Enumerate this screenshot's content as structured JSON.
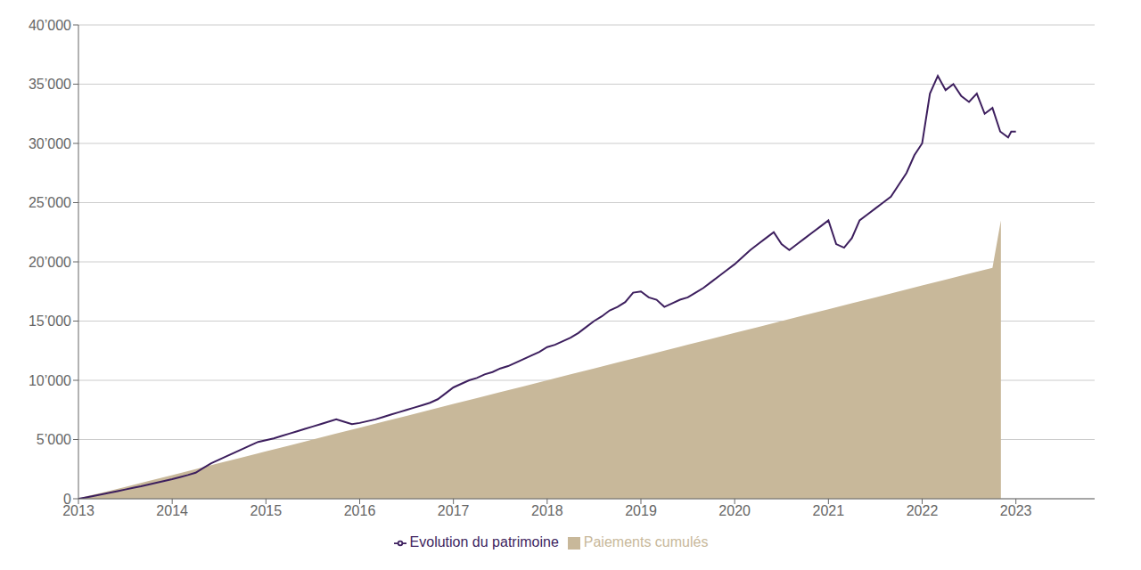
{
  "chart_data": {
    "type": "line",
    "xlim": [
      2013,
      2023.84
    ],
    "xticks": [
      2013,
      2014,
      2015,
      2016,
      2017,
      2018,
      2019,
      2020,
      2021,
      2022,
      2023
    ],
    "ylim": [
      0,
      40000
    ],
    "yticks": [
      0,
      {
        "value": 5000,
        "label": "5’000"
      },
      {
        "value": 10000,
        "label": "10’000"
      },
      {
        "value": 15000,
        "label": "15’000"
      },
      {
        "value": 20000,
        "label": "20’000"
      },
      {
        "value": 25000,
        "label": "25’000"
      },
      {
        "value": 30000,
        "label": "30’000"
      },
      {
        "value": 35000,
        "label": "35’000"
      },
      {
        "value": 40000,
        "label": "40’000"
      }
    ],
    "grid": true,
    "legend": "bottom",
    "series": [
      {
        "name": "Paiements cumulés",
        "type": "area",
        "color": "#c8b89a",
        "x": [
          2013.0,
          2013.083,
          2013.25,
          2013.5,
          2013.75,
          2014.0,
          2014.25,
          2014.5,
          2014.75,
          2015.0,
          2015.25,
          2015.5,
          2015.75,
          2016.0,
          2016.25,
          2016.5,
          2016.75,
          2017.0,
          2017.25,
          2017.5,
          2017.75,
          2018.0,
          2018.25,
          2018.5,
          2018.75,
          2019.0,
          2019.25,
          2019.5,
          2019.75,
          2020.0,
          2020.25,
          2020.5,
          2020.75,
          2021.0,
          2021.25,
          2021.5,
          2021.75,
          2022.0,
          2022.25,
          2022.5,
          2022.75,
          2022.84
        ],
        "values": [
          0,
          200,
          500,
          1000,
          1500,
          2000,
          2500,
          3000,
          3500,
          4000,
          4500,
          5000,
          5500,
          6000,
          6500,
          7000,
          7500,
          8000,
          8500,
          9000,
          9500,
          10000,
          10500,
          11000,
          11500,
          12000,
          12500,
          13000,
          13500,
          14000,
          14500,
          15000,
          15500,
          16000,
          16500,
          17000,
          17500,
          18000,
          18500,
          19000,
          19500,
          23500
        ]
      },
      {
        "name": "Evolution du patrimoine",
        "type": "line",
        "color": "#3d1f5e",
        "x": [
          2013.0,
          2013.083,
          2013.167,
          2013.25,
          2013.333,
          2013.417,
          2013.5,
          2013.583,
          2013.667,
          2013.75,
          2013.833,
          2013.917,
          2014.0,
          2014.083,
          2014.167,
          2014.25,
          2014.333,
          2014.417,
          2014.5,
          2014.583,
          2014.667,
          2014.75,
          2014.833,
          2014.917,
          2015.0,
          2015.083,
          2015.167,
          2015.25,
          2015.333,
          2015.417,
          2015.5,
          2015.583,
          2015.667,
          2015.75,
          2015.833,
          2015.917,
          2016.0,
          2016.083,
          2016.167,
          2016.25,
          2016.333,
          2016.417,
          2016.5,
          2016.583,
          2016.667,
          2016.75,
          2016.833,
          2016.917,
          2017.0,
          2017.083,
          2017.167,
          2017.25,
          2017.333,
          2017.417,
          2017.5,
          2017.583,
          2017.667,
          2017.75,
          2017.833,
          2017.917,
          2018.0,
          2018.083,
          2018.167,
          2018.25,
          2018.333,
          2018.417,
          2018.5,
          2018.583,
          2018.667,
          2018.75,
          2018.833,
          2018.917,
          2019.0,
          2019.083,
          2019.167,
          2019.25,
          2019.333,
          2019.417,
          2019.5,
          2019.583,
          2019.667,
          2019.75,
          2019.833,
          2019.917,
          2020.0,
          2020.083,
          2020.167,
          2020.25,
          2020.333,
          2020.417,
          2020.5,
          2020.583,
          2020.667,
          2020.75,
          2020.833,
          2020.917,
          2021.0,
          2021.083,
          2021.167,
          2021.25,
          2021.333,
          2021.417,
          2021.5,
          2021.583,
          2021.667,
          2021.75,
          2021.833,
          2021.917,
          2022.0,
          2022.083,
          2022.167,
          2022.25,
          2022.333,
          2022.417,
          2022.5,
          2022.583,
          2022.667,
          2022.75,
          2022.833,
          2022.917,
          2022.95,
          2023.0
        ],
        "values": [
          0,
          120,
          250,
          380,
          510,
          640,
          780,
          920,
          1050,
          1200,
          1350,
          1500,
          1650,
          1820,
          2000,
          2200,
          2600,
          3000,
          3300,
          3600,
          3900,
          4200,
          4500,
          4800,
          4950,
          5100,
          5300,
          5500,
          5700,
          5900,
          6100,
          6300,
          6500,
          6700,
          6500,
          6300,
          6400,
          6550,
          6700,
          6900,
          7100,
          7300,
          7500,
          7700,
          7900,
          8100,
          8400,
          8900,
          9400,
          9700,
          10000,
          10200,
          10500,
          10700,
          11000,
          11200,
          11500,
          11800,
          12100,
          12400,
          12800,
          13000,
          13300,
          13600,
          14000,
          14500,
          15000,
          15400,
          15900,
          16200,
          16600,
          17400,
          17500,
          17000,
          16800,
          16200,
          16500,
          16800,
          17000,
          17400,
          17800,
          18300,
          18800,
          19300,
          19800,
          20400,
          21000,
          21500,
          22000,
          22500,
          21500,
          21000,
          21500,
          22000,
          22500,
          23000,
          23500,
          21500,
          21200,
          22000,
          23500,
          24000,
          24500,
          25000,
          25500,
          26500,
          27500,
          29000,
          30000,
          34200,
          35700,
          34500,
          35000,
          34000,
          33500,
          34200,
          32500,
          33000,
          31000,
          30500,
          31000,
          31000
        ]
      }
    ]
  }
}
